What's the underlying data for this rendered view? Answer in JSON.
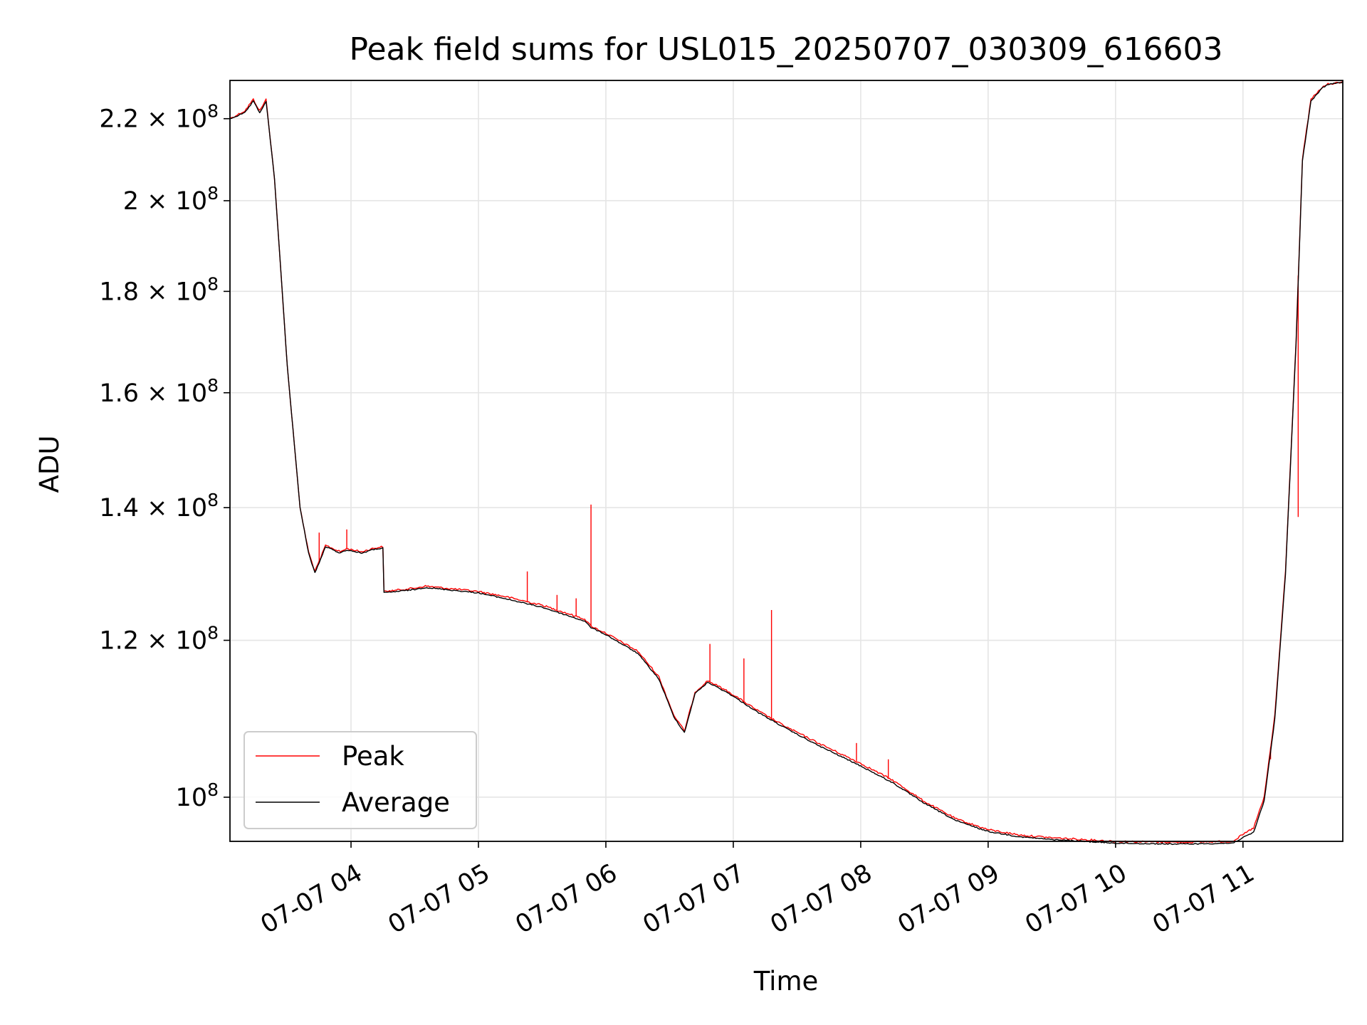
{
  "chart_data": {
    "type": "line",
    "title": "Peak field sums for USL015_20250707_030309_616603",
    "xlabel": "Time",
    "ylabel": "ADU",
    "xlim": [
      "2025-07-07T03:03:00",
      "2025-07-07T11:47:00"
    ],
    "ylim": [
      95000000,
      230000000
    ],
    "y_scale": "log",
    "grid": true,
    "legend_position": "lower-left",
    "x_ticks": [
      {
        "value": "2025-07-07T04:00:00",
        "label": "07-07 04"
      },
      {
        "value": "2025-07-07T05:00:00",
        "label": "07-07 05"
      },
      {
        "value": "2025-07-07T06:00:00",
        "label": "07-07 06"
      },
      {
        "value": "2025-07-07T07:00:00",
        "label": "07-07 07"
      },
      {
        "value": "2025-07-07T08:00:00",
        "label": "07-07 08"
      },
      {
        "value": "2025-07-07T09:00:00",
        "label": "07-07 09"
      },
      {
        "value": "2025-07-07T10:00:00",
        "label": "07-07 10"
      },
      {
        "value": "2025-07-07T11:00:00",
        "label": "07-07 11"
      }
    ],
    "y_ticks": [
      {
        "value": 100000000,
        "mantissa": "",
        "exp": "8"
      },
      {
        "value": 120000000,
        "mantissa": "1.2",
        "exp": "8"
      },
      {
        "value": 140000000,
        "mantissa": "1.4",
        "exp": "8"
      },
      {
        "value": 160000000,
        "mantissa": "1.6",
        "exp": "8"
      },
      {
        "value": 180000000,
        "mantissa": "1.8",
        "exp": "8"
      },
      {
        "value": 200000000,
        "mantissa": "2",
        "exp": "8"
      },
      {
        "value": 220000000,
        "mantissa": "2.2",
        "exp": "8"
      }
    ],
    "series": [
      {
        "name": "Peak",
        "color": "#ff0000",
        "x": [
          "2025-07-07T03:03:00",
          "2025-07-07T03:10:00",
          "2025-07-07T03:14:00",
          "2025-07-07T03:17:00",
          "2025-07-07T03:20:00",
          "2025-07-07T03:24:00",
          "2025-07-07T03:30:00",
          "2025-07-07T03:36:00",
          "2025-07-07T03:40:00",
          "2025-07-07T03:43:00",
          "2025-07-07T03:45:00",
          "2025-07-07T03:48:00",
          "2025-07-07T03:55:00",
          "2025-07-07T03:58:00",
          "2025-07-07T04:05:00",
          "2025-07-07T04:10:00",
          "2025-07-07T04:15:00",
          "2025-07-07T04:15:30",
          "2025-07-07T04:30:00",
          "2025-07-07T04:35:00",
          "2025-07-07T05:00:00",
          "2025-07-07T05:12:00",
          "2025-07-07T05:23:00",
          "2025-07-07T05:30:00",
          "2025-07-07T05:40:00",
          "2025-07-07T05:50:00",
          "2025-07-07T05:53:00",
          "2025-07-07T06:00:00",
          "2025-07-07T06:15:00",
          "2025-07-07T06:25:00",
          "2025-07-07T06:32:00",
          "2025-07-07T06:37:00",
          "2025-07-07T06:42:00",
          "2025-07-07T06:48:00",
          "2025-07-07T06:58:00",
          "2025-07-07T07:12:00",
          "2025-07-07T07:25:00",
          "2025-07-07T07:40:00",
          "2025-07-07T08:00:00",
          "2025-07-07T08:15:00",
          "2025-07-07T08:30:00",
          "2025-07-07T08:45:00",
          "2025-07-07T09:00:00",
          "2025-07-07T09:15:00",
          "2025-07-07T09:30:00",
          "2025-07-07T10:00:00",
          "2025-07-07T10:30:00",
          "2025-07-07T10:55:00",
          "2025-07-07T11:05:00",
          "2025-07-07T11:10:00",
          "2025-07-07T11:15:00",
          "2025-07-07T11:20:00",
          "2025-07-07T11:25:00",
          "2025-07-07T11:28:00",
          "2025-07-07T11:32:00",
          "2025-07-07T11:37:00",
          "2025-07-07T11:40:00",
          "2025-07-07T11:47:00"
        ],
        "y": [
          220000000,
          222000000,
          225000000,
          222000000,
          225000000,
          205000000,
          165000000,
          140000000,
          133000000,
          130000000,
          131500000,
          134000000,
          133000000,
          133500000,
          133000000,
          133500000,
          133800000,
          127000000,
          127500000,
          127800000,
          127000000,
          126300000,
          125500000,
          125000000,
          124000000,
          123000000,
          122000000,
          121000000,
          118500000,
          115000000,
          110000000,
          108000000,
          113000000,
          114500000,
          113000000,
          110500000,
          108500000,
          106500000,
          104000000,
          102000000,
          99500000,
          97500000,
          96300000,
          95700000,
          95400000,
          95000000,
          94900000,
          95000000,
          96500000,
          100000000,
          110000000,
          130000000,
          170000000,
          210000000,
          225000000,
          228000000,
          229000000,
          229500000
        ],
        "spikes": [
          {
            "x": "2025-07-07T03:45:00",
            "y": 136000000
          },
          {
            "x": "2025-07-07T03:58:00",
            "y": 136500000
          },
          {
            "x": "2025-07-07T05:23:00",
            "y": 130000000
          },
          {
            "x": "2025-07-07T05:37:00",
            "y": 126500000
          },
          {
            "x": "2025-07-07T05:46:00",
            "y": 126000000
          },
          {
            "x": "2025-07-07T05:53:00",
            "y": 140500000
          },
          {
            "x": "2025-07-07T06:49:00",
            "y": 119500000
          },
          {
            "x": "2025-07-07T07:05:00",
            "y": 117500000
          },
          {
            "x": "2025-07-07T07:18:00",
            "y": 124300000
          },
          {
            "x": "2025-07-07T07:58:00",
            "y": 106500000
          },
          {
            "x": "2025-07-07T08:13:00",
            "y": 104500000
          },
          {
            "x": "2025-07-07T11:13:00",
            "y": 104500000
          },
          {
            "x": "2025-07-07T11:26:00",
            "y": 138500000
          }
        ]
      },
      {
        "name": "Average",
        "color": "#000000",
        "x": [
          "2025-07-07T03:03:00",
          "2025-07-07T03:10:00",
          "2025-07-07T03:14:00",
          "2025-07-07T03:17:00",
          "2025-07-07T03:20:00",
          "2025-07-07T03:24:00",
          "2025-07-07T03:30:00",
          "2025-07-07T03:36:00",
          "2025-07-07T03:40:00",
          "2025-07-07T03:43:00",
          "2025-07-07T03:45:00",
          "2025-07-07T03:48:00",
          "2025-07-07T03:55:00",
          "2025-07-07T03:58:00",
          "2025-07-07T04:05:00",
          "2025-07-07T04:10:00",
          "2025-07-07T04:15:00",
          "2025-07-07T04:15:30",
          "2025-07-07T04:30:00",
          "2025-07-07T04:35:00",
          "2025-07-07T05:00:00",
          "2025-07-07T05:12:00",
          "2025-07-07T05:23:00",
          "2025-07-07T05:30:00",
          "2025-07-07T05:40:00",
          "2025-07-07T05:50:00",
          "2025-07-07T05:53:00",
          "2025-07-07T06:00:00",
          "2025-07-07T06:15:00",
          "2025-07-07T06:25:00",
          "2025-07-07T06:32:00",
          "2025-07-07T06:37:00",
          "2025-07-07T06:42:00",
          "2025-07-07T06:48:00",
          "2025-07-07T06:58:00",
          "2025-07-07T07:12:00",
          "2025-07-07T07:25:00",
          "2025-07-07T07:40:00",
          "2025-07-07T08:00:00",
          "2025-07-07T08:15:00",
          "2025-07-07T08:30:00",
          "2025-07-07T08:45:00",
          "2025-07-07T09:00:00",
          "2025-07-07T09:15:00",
          "2025-07-07T09:30:00",
          "2025-07-07T10:00:00",
          "2025-07-07T10:30:00",
          "2025-07-07T10:55:00",
          "2025-07-07T11:05:00",
          "2025-07-07T11:10:00",
          "2025-07-07T11:15:00",
          "2025-07-07T11:20:00",
          "2025-07-07T11:25:00",
          "2025-07-07T11:28:00",
          "2025-07-07T11:32:00",
          "2025-07-07T11:37:00",
          "2025-07-07T11:40:00",
          "2025-07-07T11:47:00"
        ],
        "y": [
          220000000,
          221500000,
          224500000,
          221500000,
          224500000,
          205000000,
          165000000,
          140000000,
          132800000,
          129800000,
          131300000,
          133800000,
          132800000,
          133300000,
          132800000,
          133300000,
          133600000,
          126800000,
          127300000,
          127600000,
          126800000,
          126000000,
          125200000,
          124700000,
          123700000,
          122700000,
          121800000,
          120800000,
          118200000,
          114700000,
          109800000,
          107800000,
          112800000,
          114300000,
          112800000,
          110300000,
          108300000,
          106200000,
          103700000,
          101700000,
          99300000,
          97300000,
          96100000,
          95500000,
          95200000,
          94800000,
          94700000,
          94800000,
          96000000,
          99600000,
          109500000,
          129500000,
          169500000,
          209500000,
          224500000,
          227800000,
          229000000,
          229500000
        ]
      }
    ]
  }
}
